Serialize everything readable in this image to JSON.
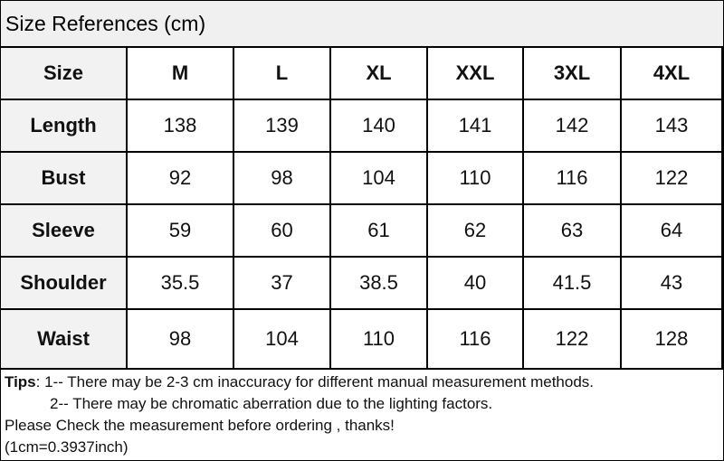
{
  "title": "Size References (cm)",
  "table": {
    "header": [
      "Size",
      "M",
      "L",
      "XL",
      "XXL",
      "3XL",
      "4XL"
    ],
    "rows": [
      [
        "Length",
        138,
        139,
        140,
        141,
        142,
        143
      ],
      [
        "Bust",
        92,
        98,
        104,
        110,
        116,
        122
      ],
      [
        "Sleeve",
        59,
        60,
        61,
        62,
        63,
        64
      ],
      [
        "Shoulder",
        35.5,
        37,
        38.5,
        40,
        41.5,
        43
      ],
      [
        "Waist",
        98,
        104,
        110,
        116,
        122,
        128
      ]
    ]
  },
  "notes": {
    "label": "Tips",
    "items": [
      ": 1-- There may be 2-3 cm inaccuracy for different manual measurement methods.",
      "2-- There may be chromatic aberration due to the lighting factors."
    ],
    "footer": [
      "Please Check the measurement before ordering , thanks!",
      "(1cm=0.3937inch)"
    ]
  }
}
